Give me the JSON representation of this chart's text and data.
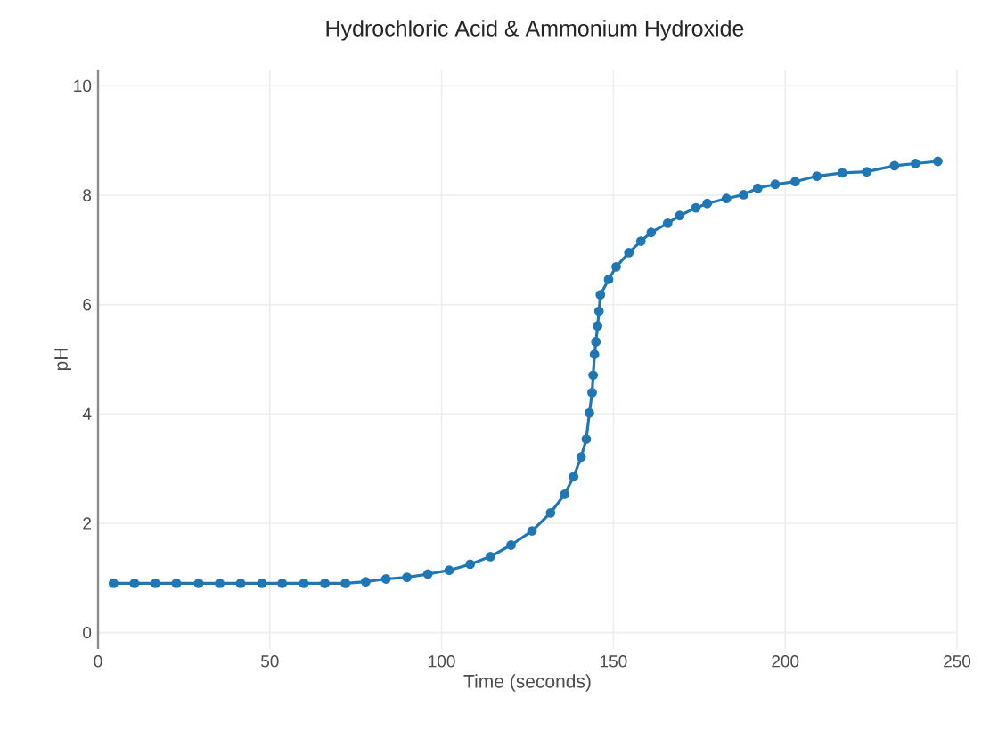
{
  "chart_data": {
    "type": "line",
    "title": "Hydrochloric Acid & Ammonium Hydroxide",
    "xlabel": "Time (seconds)",
    "ylabel": "pH",
    "x": [
      4.5,
      10.6,
      16.7,
      22.8,
      29.3,
      35.4,
      41.5,
      47.7,
      53.6,
      59.9,
      66,
      72,
      77.9,
      83.8,
      89.9,
      96,
      102.2,
      108.3,
      114.2,
      120.2,
      126.3,
      131.7,
      135.8,
      138.4,
      140.6,
      142.1,
      143,
      143.8,
      144.1,
      144.5,
      144.9,
      145.4,
      145.8,
      146.2,
      148.6,
      150.8,
      154.5,
      158,
      161,
      165.8,
      169.3,
      174,
      177.3,
      182.9,
      187.9,
      192,
      197.1,
      202.9,
      209.2,
      216.6,
      223.7,
      231.8,
      237.9,
      244.4
    ],
    "values": [
      0.9,
      0.9,
      0.9,
      0.9,
      0.9,
      0.9,
      0.9,
      0.9,
      0.9,
      0.9,
      0.9,
      0.9,
      0.93,
      0.98,
      1.01,
      1.07,
      1.14,
      1.25,
      1.39,
      1.6,
      1.86,
      2.19,
      2.53,
      2.85,
      3.21,
      3.54,
      4.02,
      4.39,
      4.71,
      5.09,
      5.32,
      5.61,
      5.88,
      6.18,
      6.46,
      6.69,
      6.95,
      7.16,
      7.32,
      7.49,
      7.63,
      7.77,
      7.85,
      7.94,
      8.01,
      8.13,
      8.2,
      8.25,
      8.35,
      8.41,
      8.43,
      8.54,
      8.58,
      8.62
    ],
    "color": "#1f77b4",
    "marker": "circle",
    "line_style": "solid",
    "grid": true,
    "xlim": [
      0,
      250
    ],
    "xticks": [
      0,
      50,
      100,
      150,
      200,
      250
    ],
    "ylim": [
      -0.3,
      10.3
    ],
    "yticks": [
      0,
      2,
      4,
      6,
      8,
      10
    ]
  }
}
